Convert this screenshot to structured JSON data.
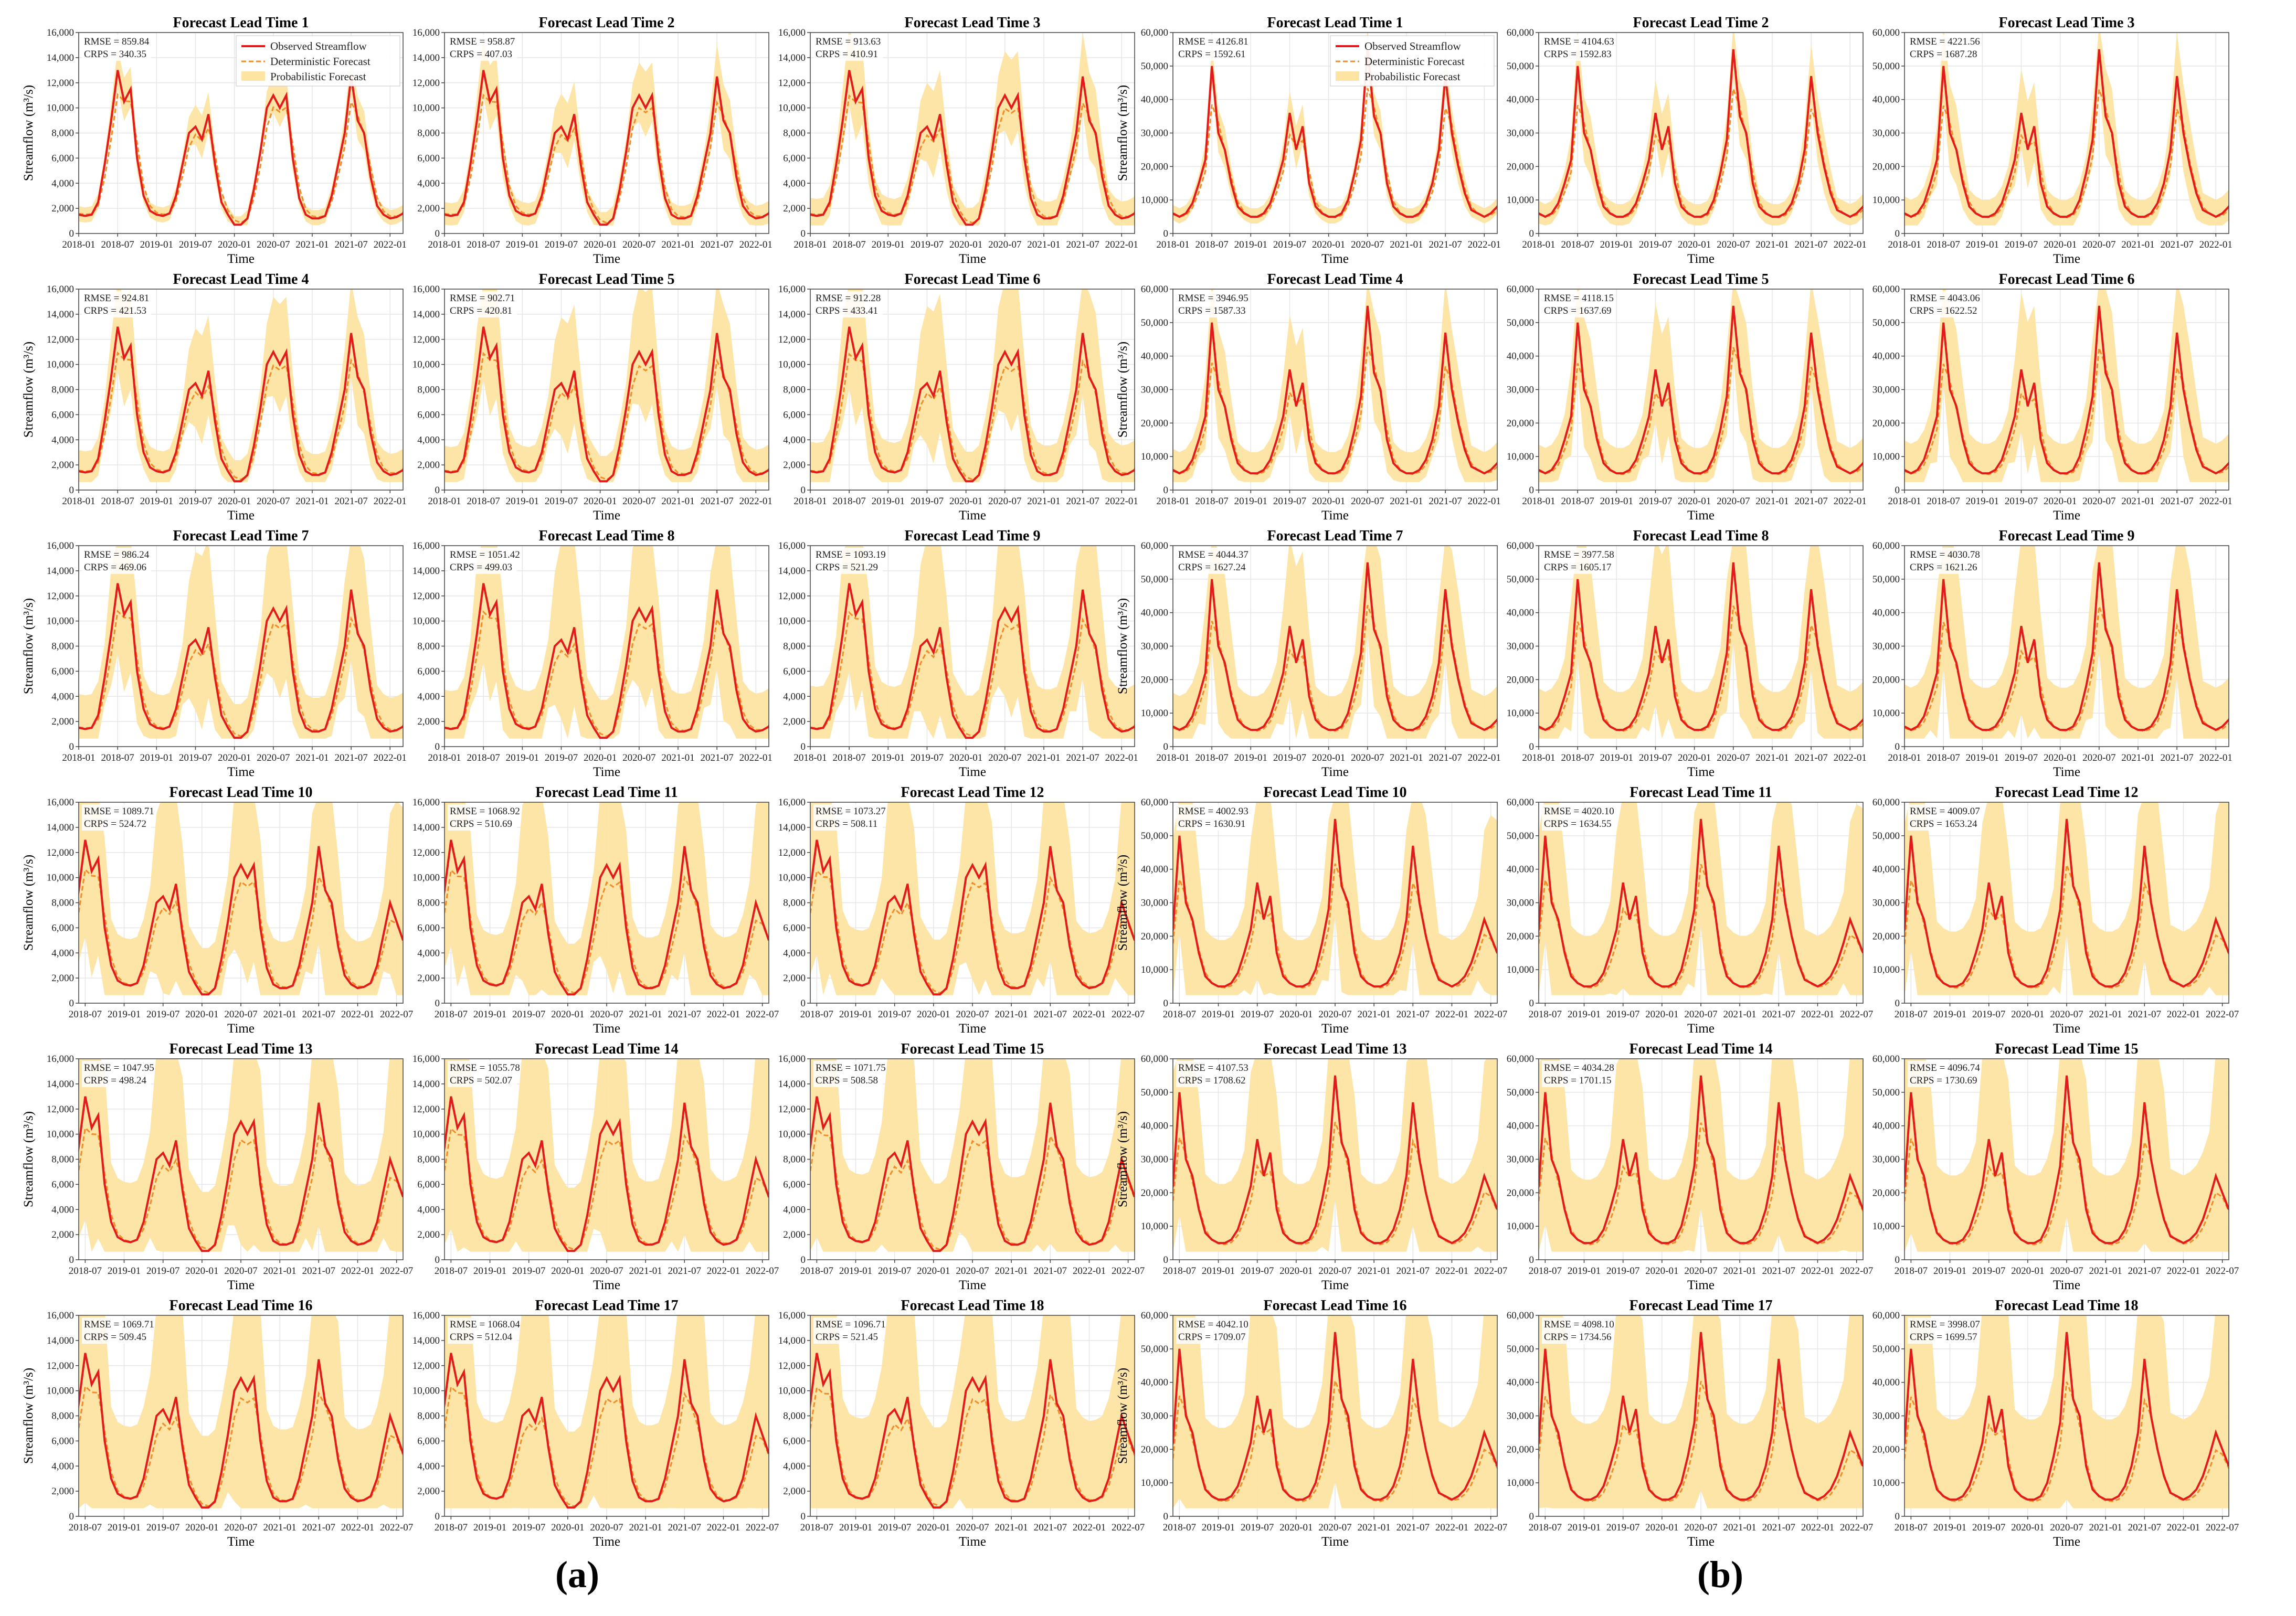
{
  "figure": {
    "panel_labels": [
      "(a)",
      "(b)"
    ],
    "x_axis_label": "Time",
    "y_axis_label": "Streamflow (m³/s)",
    "legend": [
      "Observed Streamflow",
      "Deterministic Forecast",
      "Probabilistic Forecast"
    ],
    "colors": {
      "observed": "#e31a1c",
      "deterministic": "#f28c28",
      "probabilistic": "#fde4a3",
      "grid": "#e6e6e6"
    }
  },
  "chart_data": [
    {
      "panel": "(a)",
      "type": "line",
      "ylim": [
        0,
        16000
      ],
      "yticks": [
        0,
        2000,
        4000,
        6000,
        8000,
        10000,
        12000,
        14000,
        16000
      ],
      "xlim_first_rows": [
        "2018-01",
        "2022-03"
      ],
      "xticks_first_rows": [
        "2018-01",
        "2018-07",
        "2019-01",
        "2019-07",
        "2020-01",
        "2020-07",
        "2021-01",
        "2021-07",
        "2022-01"
      ],
      "xlim_last_rows": [
        "2018-06",
        "2022-08"
      ],
      "xticks_last_rows": [
        "2018-07",
        "2019-01",
        "2019-07",
        "2020-01",
        "2020-07",
        "2021-01",
        "2021-07",
        "2022-01",
        "2022-07"
      ],
      "grid": true,
      "legend_position": "top-right of first subplot",
      "subplots": [
        {
          "title": "Forecast Lead Time 1",
          "rmse": "RMSE = 859.84",
          "crps": "CRPS = 340.35"
        },
        {
          "title": "Forecast Lead Time 2",
          "rmse": "RMSE = 958.87",
          "crps": "CRPS = 407.03"
        },
        {
          "title": "Forecast Lead Time 3",
          "rmse": "RMSE = 913.63",
          "crps": "CRPS = 410.91"
        },
        {
          "title": "Forecast Lead Time 4",
          "rmse": "RMSE = 924.81",
          "crps": "CRPS = 421.53"
        },
        {
          "title": "Forecast Lead Time 5",
          "rmse": "RMSE = 902.71",
          "crps": "CRPS = 420.81"
        },
        {
          "title": "Forecast Lead Time 6",
          "rmse": "RMSE = 912.28",
          "crps": "CRPS = 433.41"
        },
        {
          "title": "Forecast Lead Time 7",
          "rmse": "RMSE = 986.24",
          "crps": "CRPS = 469.06"
        },
        {
          "title": "Forecast Lead Time 8",
          "rmse": "RMSE = 1051.42",
          "crps": "CRPS = 499.03"
        },
        {
          "title": "Forecast Lead Time 9",
          "rmse": "RMSE = 1093.19",
          "crps": "CRPS = 521.29"
        },
        {
          "title": "Forecast Lead Time 10",
          "rmse": "RMSE = 1089.71",
          "crps": "CRPS = 524.72"
        },
        {
          "title": "Forecast Lead Time 11",
          "rmse": "RMSE = 1068.92",
          "crps": "CRPS = 510.69"
        },
        {
          "title": "Forecast Lead Time 12",
          "rmse": "RMSE = 1073.27",
          "crps": "CRPS = 508.11"
        },
        {
          "title": "Forecast Lead Time 13",
          "rmse": "RMSE = 1047.95",
          "crps": "CRPS = 498.24"
        },
        {
          "title": "Forecast Lead Time 14",
          "rmse": "RMSE = 1055.78",
          "crps": "CRPS = 502.07"
        },
        {
          "title": "Forecast Lead Time 15",
          "rmse": "RMSE = 1071.75",
          "crps": "CRPS = 508.58"
        },
        {
          "title": "Forecast Lead Time 16",
          "rmse": "RMSE = 1069.71",
          "crps": "CRPS = 509.45"
        },
        {
          "title": "Forecast Lead Time 17",
          "rmse": "RMSE = 1068.04",
          "crps": "CRPS = 512.04"
        },
        {
          "title": "Forecast Lead Time 18",
          "rmse": "RMSE = 1096.71",
          "crps": "CRPS = 521.45"
        }
      ],
      "observed_series": {
        "x": [
          "2018-01",
          "2018-02",
          "2018-03",
          "2018-04",
          "2018-05",
          "2018-06",
          "2018-07",
          "2018-08",
          "2018-09",
          "2018-10",
          "2018-11",
          "2018-12",
          "2019-01",
          "2019-02",
          "2019-03",
          "2019-04",
          "2019-05",
          "2019-06",
          "2019-07",
          "2019-08",
          "2019-09",
          "2019-10",
          "2019-11",
          "2019-12",
          "2020-01",
          "2020-02",
          "2020-03",
          "2020-04",
          "2020-05",
          "2020-06",
          "2020-07",
          "2020-08",
          "2020-09",
          "2020-10",
          "2020-11",
          "2020-12",
          "2021-01",
          "2021-02",
          "2021-03",
          "2021-04",
          "2021-05",
          "2021-06",
          "2021-07",
          "2021-08",
          "2021-09",
          "2021-10",
          "2021-11",
          "2021-12",
          "2022-01",
          "2022-02",
          "2022-03",
          "2022-04",
          "2022-05",
          "2022-06",
          "2022-07",
          "2022-08"
        ],
        "y": [
          1500,
          1400,
          1500,
          2500,
          5500,
          9000,
          13000,
          10500,
          11500,
          6000,
          3000,
          1800,
          1500,
          1400,
          1600,
          3000,
          5500,
          8000,
          8500,
          7500,
          9500,
          5500,
          2500,
          1500,
          700,
          700,
          1200,
          3500,
          6500,
          10000,
          11000,
          10000,
          11000,
          6000,
          2800,
          1500,
          1200,
          1200,
          1400,
          3000,
          5500,
          8000,
          12500,
          9000,
          8000,
          4500,
          2200,
          1500,
          1200,
          1300,
          1600,
          3000,
          5500,
          8000,
          6500,
          5000
        ],
        "unit": "m³/s",
        "note_values_estimated": true
      }
    },
    {
      "panel": "(b)",
      "type": "line",
      "ylim": [
        0,
        60000
      ],
      "yticks": [
        0,
        10000,
        20000,
        30000,
        40000,
        50000,
        60000
      ],
      "xlim_first_rows": [
        "2018-01",
        "2022-03"
      ],
      "xticks_first_rows": [
        "2018-01",
        "2018-07",
        "2019-01",
        "2019-07",
        "2020-01",
        "2020-07",
        "2021-01",
        "2021-07",
        "2022-01"
      ],
      "xlim_last_rows": [
        "2018-06",
        "2022-08"
      ],
      "xticks_last_rows": [
        "2018-07",
        "2019-01",
        "2019-07",
        "2020-01",
        "2020-07",
        "2021-01",
        "2021-07",
        "2022-01",
        "2022-07"
      ],
      "grid": true,
      "legend_position": "top-right of first subplot",
      "subplots": [
        {
          "title": "Forecast Lead Time 1",
          "rmse": "RMSE = 4126.81",
          "crps": "CRPS = 1592.61"
        },
        {
          "title": "Forecast Lead Time 2",
          "rmse": "RMSE = 4104.63",
          "crps": "CRPS = 1592.83"
        },
        {
          "title": "Forecast Lead Time 3",
          "rmse": "RMSE = 4221.56",
          "crps": "CRPS = 1687.28"
        },
        {
          "title": "Forecast Lead Time 4",
          "rmse": "RMSE = 3946.95",
          "crps": "CRPS = 1587.33"
        },
        {
          "title": "Forecast Lead Time 5",
          "rmse": "RMSE = 4118.15",
          "crps": "CRPS = 1637.69"
        },
        {
          "title": "Forecast Lead Time 6",
          "rmse": "RMSE = 4043.06",
          "crps": "CRPS = 1622.52"
        },
        {
          "title": "Forecast Lead Time 7",
          "rmse": "RMSE = 4044.37",
          "crps": "CRPS = 1627.24"
        },
        {
          "title": "Forecast Lead Time 8",
          "rmse": "RMSE = 3977.58",
          "crps": "CRPS = 1605.17"
        },
        {
          "title": "Forecast Lead Time 9",
          "rmse": "RMSE = 4030.78",
          "crps": "CRPS = 1621.26"
        },
        {
          "title": "Forecast Lead Time 10",
          "rmse": "RMSE = 4002.93",
          "crps": "CRPS = 1630.91"
        },
        {
          "title": "Forecast Lead Time 11",
          "rmse": "RMSE = 4020.10",
          "crps": "CRPS = 1634.55"
        },
        {
          "title": "Forecast Lead Time 12",
          "rmse": "RMSE = 4009.07",
          "crps": "CRPS = 1653.24"
        },
        {
          "title": "Forecast Lead Time 13",
          "rmse": "RMSE = 4107.53",
          "crps": "CRPS = 1708.62"
        },
        {
          "title": "Forecast Lead Time 14",
          "rmse": "RMSE = 4034.28",
          "crps": "CRPS = 1701.15"
        },
        {
          "title": "Forecast Lead Time 15",
          "rmse": "RMSE = 4096.74",
          "crps": "CRPS = 1730.69"
        },
        {
          "title": "Forecast Lead Time 16",
          "rmse": "RMSE = 4042.10",
          "crps": "CRPS = 1709.07"
        },
        {
          "title": "Forecast Lead Time 17",
          "rmse": "RMSE = 4098.10",
          "crps": "CRPS = 1734.56"
        },
        {
          "title": "Forecast Lead Time 18",
          "rmse": "RMSE = 3998.07",
          "crps": "CRPS = 1699.57"
        }
      ],
      "observed_series": {
        "x": [
          "2018-01",
          "2018-02",
          "2018-03",
          "2018-04",
          "2018-05",
          "2018-06",
          "2018-07",
          "2018-08",
          "2018-09",
          "2018-10",
          "2018-11",
          "2018-12",
          "2019-01",
          "2019-02",
          "2019-03",
          "2019-04",
          "2019-05",
          "2019-06",
          "2019-07",
          "2019-08",
          "2019-09",
          "2019-10",
          "2019-11",
          "2019-12",
          "2020-01",
          "2020-02",
          "2020-03",
          "2020-04",
          "2020-05",
          "2020-06",
          "2020-07",
          "2020-08",
          "2020-09",
          "2020-10",
          "2020-11",
          "2020-12",
          "2021-01",
          "2021-02",
          "2021-03",
          "2021-04",
          "2021-05",
          "2021-06",
          "2021-07",
          "2021-08",
          "2021-09",
          "2021-10",
          "2021-11",
          "2021-12",
          "2022-01",
          "2022-02",
          "2022-03",
          "2022-04",
          "2022-05",
          "2022-06",
          "2022-07",
          "2022-08"
        ],
        "y": [
          6000,
          5000,
          6000,
          9000,
          15000,
          22000,
          50000,
          30000,
          25000,
          15000,
          8000,
          6000,
          5000,
          5000,
          6000,
          9000,
          15000,
          22000,
          36000,
          25000,
          32000,
          15000,
          8000,
          6000,
          5000,
          5000,
          6000,
          10000,
          18000,
          28000,
          55000,
          35000,
          30000,
          15000,
          8000,
          6000,
          5000,
          5000,
          6000,
          9000,
          15000,
          25000,
          47000,
          30000,
          20000,
          12000,
          7000,
          6000,
          5000,
          6000,
          8000,
          12000,
          18000,
          25000,
          20000,
          15000
        ],
        "unit": "m³/s",
        "note_values_estimated": true
      }
    }
  ]
}
